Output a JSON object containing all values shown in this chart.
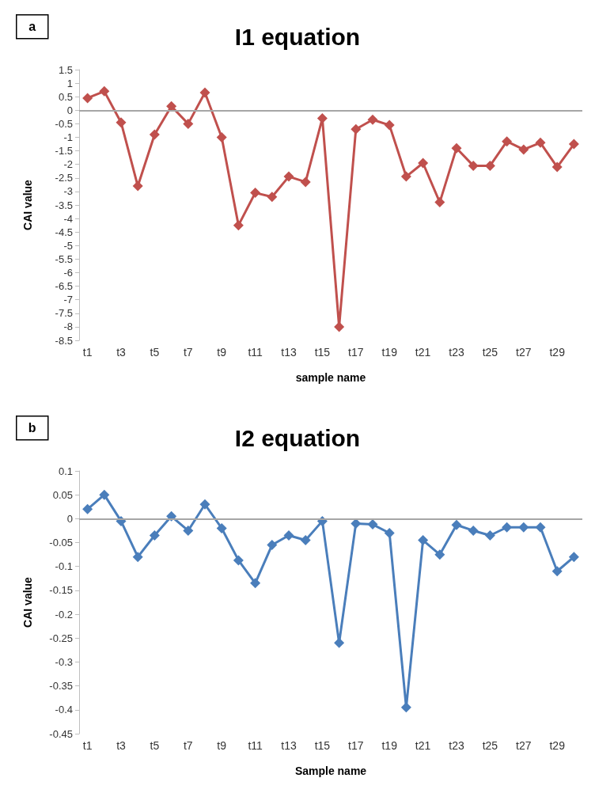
{
  "chart_data": [
    {
      "type": "line",
      "title": "I1 equation",
      "xlabel": "sample name",
      "ylabel": "CAI value",
      "annotations": [
        "a"
      ],
      "categories": [
        "t1",
        null,
        "t3",
        null,
        "t5",
        null,
        "t7",
        null,
        "t9",
        null,
        "t11",
        null,
        "t13",
        null,
        "t15",
        null,
        "t17",
        null,
        "t19",
        null,
        "t21",
        null,
        "t23",
        null,
        "t25",
        null,
        "t27",
        null,
        "t29",
        null
      ],
      "series": [
        {
          "color": "#c0504d",
          "values": [
            0.45,
            0.7,
            -0.45,
            -2.8,
            -0.9,
            0.15,
            -0.5,
            0.65,
            -1.0,
            -4.25,
            -3.05,
            -3.2,
            -2.45,
            -2.65,
            -0.3,
            -8.0,
            -0.7,
            -0.35,
            -0.55,
            -2.45,
            -1.95,
            -3.4,
            -1.4,
            -2.05,
            -2.05,
            -1.15,
            -1.45,
            -1.2,
            -2.1,
            -1.25
          ]
        }
      ],
      "ylim": [
        -8.5,
        1.5
      ],
      "yticks": [
        1.5,
        1,
        0.5,
        0,
        -0.5,
        -1,
        -1.5,
        -2,
        -2.5,
        -3,
        -3.5,
        -4,
        -4.5,
        -5,
        -5.5,
        -6,
        -6.5,
        -7,
        -7.5,
        -8,
        -8.5
      ],
      "ref_lines": [
        {
          "axis": "y",
          "value": 0,
          "color": "#a6a6a6"
        }
      ],
      "marker": "diamond",
      "line_style": "solid",
      "grid": false
    },
    {
      "type": "line",
      "title": "I2 equation",
      "xlabel": "Sample name",
      "ylabel": "CAI value",
      "annotations": [
        "b"
      ],
      "categories": [
        "t1",
        null,
        "t3",
        null,
        "t5",
        null,
        "t7",
        null,
        "t9",
        null,
        "t11",
        null,
        "t13",
        null,
        "t15",
        null,
        "t17",
        null,
        "t19",
        null,
        "t21",
        null,
        "t23",
        null,
        "t25",
        null,
        "t27",
        null,
        "t29",
        null
      ],
      "series": [
        {
          "color": "#4a7ebb",
          "values": [
            0.02,
            0.05,
            -0.005,
            -0.08,
            -0.035,
            0.005,
            -0.025,
            0.03,
            -0.02,
            -0.087,
            -0.135,
            -0.055,
            -0.035,
            -0.045,
            -0.005,
            -0.26,
            -0.01,
            -0.012,
            -0.03,
            -0.395,
            -0.045,
            -0.075,
            -0.013,
            -0.025,
            -0.035,
            -0.018,
            -0.018,
            -0.018,
            -0.11,
            -0.08
          ]
        }
      ],
      "ylim": [
        -0.45,
        0.1
      ],
      "yticks": [
        0.1,
        0.05,
        0,
        -0.05,
        -0.1,
        -0.15,
        -0.2,
        -0.25,
        -0.3,
        -0.35,
        -0.4,
        -0.45
      ],
      "ref_lines": [
        {
          "axis": "y",
          "value": 0,
          "color": "#a6a6a6"
        }
      ],
      "marker": "diamond",
      "line_style": "solid",
      "grid": false
    }
  ]
}
